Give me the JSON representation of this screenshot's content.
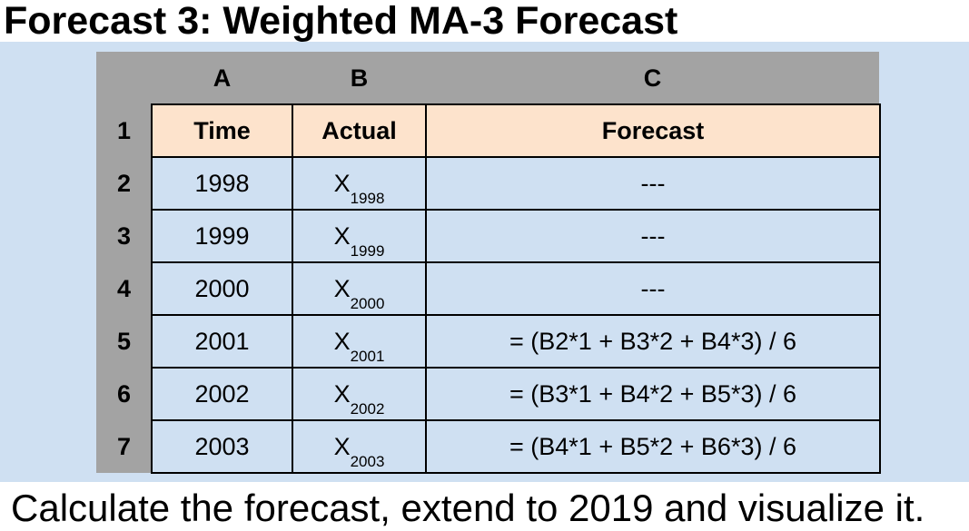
{
  "title": "Forecast 3: Weighted MA-3 Forecast",
  "footer": "Calculate the forecast, extend to 2019 and visualize it.",
  "sheet": {
    "column_letters": [
      "A",
      "B",
      "C"
    ],
    "row_numbers": [
      "1",
      "2",
      "3",
      "4",
      "5",
      "6",
      "7"
    ],
    "headers": [
      "Time",
      "Actual",
      "Forecast"
    ],
    "rows": [
      {
        "time": "1998",
        "actual": "X",
        "actual_sub": "1998",
        "forecast": "---"
      },
      {
        "time": "1999",
        "actual": "X",
        "actual_sub": "1999",
        "forecast": "---"
      },
      {
        "time": "2000",
        "actual": "X",
        "actual_sub": "2000",
        "forecast": "---"
      },
      {
        "time": "2001",
        "actual": "X",
        "actual_sub": "2001",
        "forecast": "= (B2*1 + B3*2 + B4*3) / 6"
      },
      {
        "time": "2002",
        "actual": "X",
        "actual_sub": "2002",
        "forecast": "= (B3*1 + B4*2 + B5*3) / 6"
      },
      {
        "time": "2003",
        "actual": "X",
        "actual_sub": "2003",
        "forecast": "= (B4*1 + B5*2 + B6*3) / 6"
      }
    ]
  },
  "colors": {
    "band": "#cfe0f2",
    "header_fill": "#fde3cc",
    "sheet_gray": "#a3a3a3"
  }
}
